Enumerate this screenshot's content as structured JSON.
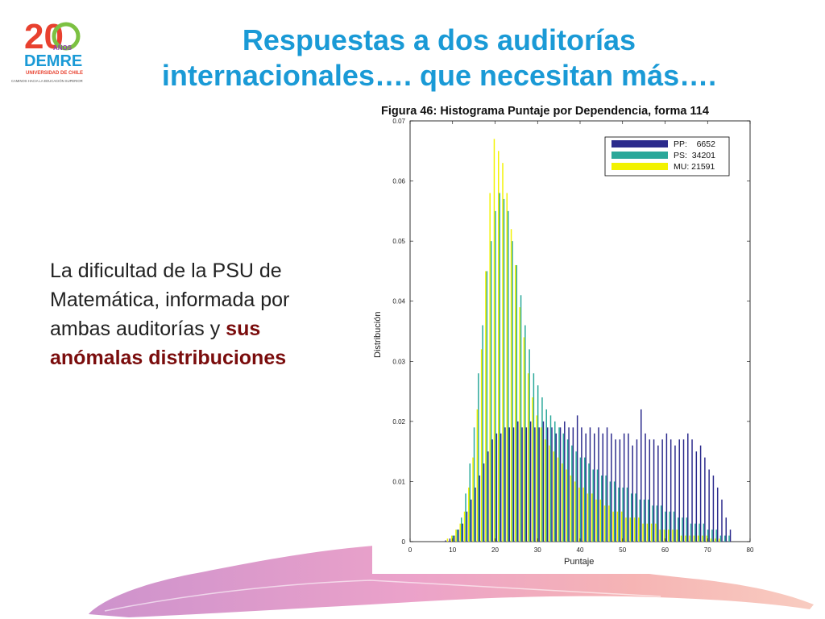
{
  "logo": {
    "number": "20",
    "years": "AÑOS",
    "brand": "DEMRE",
    "university": "UNIVERSIDAD DE CHILE",
    "tagline": "CAMINOS HACIA LA EDUCACIÓN SUPERIOR",
    "colors": [
      "#e8412f",
      "#f5a623",
      "#7cc142",
      "#1a9ad6",
      "#8e44ad"
    ]
  },
  "title": {
    "line1": "Respuestas a dos auditorías",
    "line2": "internacionales…. que necesitan más…."
  },
  "body": {
    "part1": "La dificultad de la PSU de Matemática, informada por ambas auditorías y ",
    "highlight": "sus anómalas distribuciones"
  },
  "chart_data": {
    "type": "bar",
    "title": "Figura 46: Histograma Puntaje por Dependencia, forma 114",
    "xlabel": "Puntaje",
    "ylabel": "Distribución",
    "xlim": [
      0,
      80
    ],
    "ylim": [
      0,
      0.07
    ],
    "xticks": [
      "0",
      "10",
      "20",
      "30",
      "40",
      "50",
      "60",
      "70",
      "80"
    ],
    "yticks": [
      "0",
      "0.01",
      "0.02",
      "0.03",
      "0.04",
      "0.05",
      "0.06",
      "0.07"
    ],
    "grid": false,
    "legend_position": "top-right",
    "x": [
      0,
      1,
      2,
      3,
      4,
      5,
      6,
      7,
      8,
      9,
      10,
      11,
      12,
      13,
      14,
      15,
      16,
      17,
      18,
      19,
      20,
      21,
      22,
      23,
      24,
      25,
      26,
      27,
      28,
      29,
      30,
      31,
      32,
      33,
      34,
      35,
      36,
      37,
      38,
      39,
      40,
      41,
      42,
      43,
      44,
      45,
      46,
      47,
      48,
      49,
      50,
      51,
      52,
      53,
      54,
      55,
      56,
      57,
      58,
      59,
      60,
      61,
      62,
      63,
      64,
      65,
      66,
      67,
      68,
      69,
      70,
      71,
      72,
      73,
      74,
      75
    ],
    "series": [
      {
        "name": "PP:    6652",
        "color": "#2b2a8c",
        "values": [
          0,
          0,
          0,
          0,
          0,
          0,
          0,
          0,
          0.0002,
          0.0005,
          0.001,
          0.002,
          0.003,
          0.005,
          0.007,
          0.009,
          0.011,
          0.013,
          0.015,
          0.017,
          0.018,
          0.018,
          0.019,
          0.019,
          0.019,
          0.02,
          0.019,
          0.019,
          0.02,
          0.019,
          0.019,
          0.02,
          0.019,
          0.019,
          0.018,
          0.019,
          0.02,
          0.019,
          0.019,
          0.021,
          0.019,
          0.018,
          0.019,
          0.018,
          0.019,
          0.018,
          0.019,
          0.018,
          0.017,
          0.017,
          0.018,
          0.018,
          0.016,
          0.017,
          0.022,
          0.018,
          0.017,
          0.017,
          0.016,
          0.017,
          0.018,
          0.017,
          0.016,
          0.017,
          0.017,
          0.018,
          0.017,
          0.015,
          0.016,
          0.014,
          0.012,
          0.011,
          0.009,
          0.007,
          0.004,
          0.002
        ]
      },
      {
        "name": "PS:  34201",
        "color": "#2aa89a",
        "values": [
          0,
          0,
          0,
          0,
          0,
          0,
          0,
          0,
          0,
          0,
          0.001,
          0.002,
          0.004,
          0.008,
          0.013,
          0.019,
          0.028,
          0.036,
          0.045,
          0.05,
          0.055,
          0.058,
          0.057,
          0.055,
          0.05,
          0.046,
          0.041,
          0.036,
          0.032,
          0.028,
          0.026,
          0.024,
          0.022,
          0.021,
          0.02,
          0.019,
          0.018,
          0.017,
          0.016,
          0.015,
          0.014,
          0.014,
          0.013,
          0.012,
          0.012,
          0.011,
          0.011,
          0.01,
          0.01,
          0.009,
          0.009,
          0.009,
          0.008,
          0.008,
          0.007,
          0.007,
          0.007,
          0.006,
          0.006,
          0.006,
          0.005,
          0.005,
          0.005,
          0.004,
          0.004,
          0.004,
          0.003,
          0.003,
          0.003,
          0.003,
          0.002,
          0.002,
          0.002,
          0.001,
          0.001,
          0.001
        ]
      },
      {
        "name": "MU: 21591",
        "color": "#f2f200",
        "values": [
          0,
          0,
          0,
          0,
          0,
          0,
          0,
          0,
          0,
          0.0005,
          0.001,
          0.002,
          0.003,
          0.005,
          0.009,
          0.014,
          0.022,
          0.032,
          0.045,
          0.058,
          0.067,
          0.065,
          0.063,
          0.058,
          0.052,
          0.046,
          0.039,
          0.034,
          0.028,
          0.024,
          0.021,
          0.019,
          0.017,
          0.016,
          0.015,
          0.014,
          0.013,
          0.012,
          0.011,
          0.01,
          0.009,
          0.009,
          0.008,
          0.008,
          0.007,
          0.007,
          0.006,
          0.006,
          0.005,
          0.005,
          0.005,
          0.004,
          0.004,
          0.004,
          0.004,
          0.003,
          0.003,
          0.003,
          0.003,
          0.002,
          0.002,
          0.002,
          0.002,
          0.002,
          0.001,
          0.001,
          0.001,
          0.001,
          0.001,
          0.001,
          0.001,
          0.0005,
          0.0005,
          0.0005,
          0,
          0
        ]
      }
    ]
  }
}
